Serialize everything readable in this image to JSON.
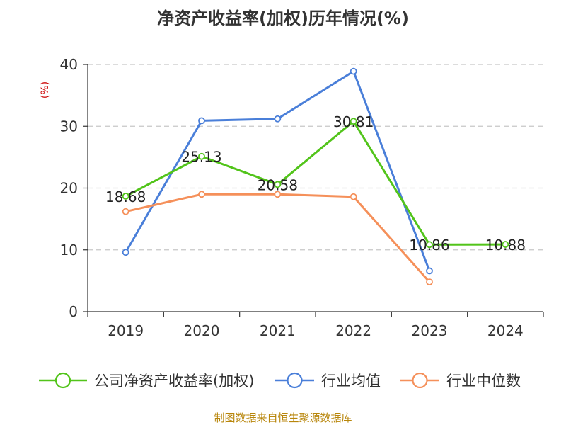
{
  "chart_data": {
    "type": "line",
    "title": "净资产收益率(加权)历年情况(%)",
    "ylabel": "(%)",
    "xlabel": "",
    "categories": [
      "2019",
      "2020",
      "2021",
      "2022",
      "2023",
      "2024"
    ],
    "ylim": [
      0,
      40
    ],
    "yticks": [
      0,
      10,
      20,
      30,
      40
    ],
    "grid": true,
    "legend_position": "bottom",
    "series": [
      {
        "name": "公司净资产收益率(加权)",
        "color": "#52c41a",
        "values": [
          18.68,
          25.13,
          20.58,
          30.81,
          10.86,
          10.88
        ],
        "labels": [
          "18.68",
          "25.13",
          "20.58",
          "30.81",
          "10.86",
          "10.88"
        ]
      },
      {
        "name": "行业均值",
        "color": "#4a7fd9",
        "values": [
          9.6,
          30.9,
          31.2,
          38.9,
          6.6,
          null
        ]
      },
      {
        "name": "行业中位数",
        "color": "#f5905a",
        "values": [
          16.2,
          19.0,
          19.0,
          18.6,
          4.8,
          null
        ]
      }
    ],
    "source": "制图数据来自恒生聚源数据库"
  }
}
